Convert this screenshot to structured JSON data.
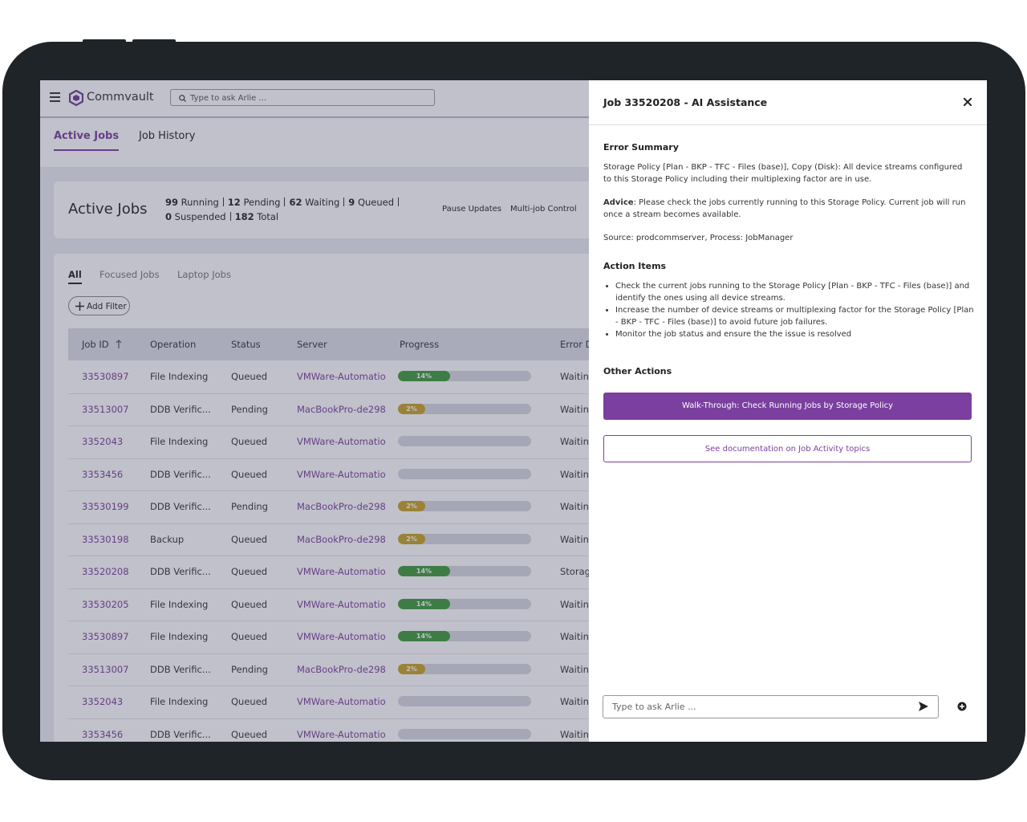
{
  "app": {
    "logo": "Commvault",
    "search_placeholder": "Type to ask Arlie ...",
    "tabs": [
      "Active Jobs",
      "Job History"
    ],
    "summary": {
      "title": "Active Jobs",
      "stats": [
        {
          "count": "99",
          "label": "Running"
        },
        {
          "count": "12",
          "label": "Pending"
        },
        {
          "count": "62",
          "label": "Waiting"
        },
        {
          "count": "9",
          "label": "Queued"
        },
        {
          "count": "0",
          "label": "Suspended"
        },
        {
          "count": "182",
          "label": "Total"
        }
      ],
      "buttons": [
        "Pause Updates",
        "Multi-job Control"
      ]
    },
    "filters": [
      "All",
      "Focused Jobs",
      "Laptop Jobs"
    ],
    "add_filter": "Add Filter",
    "table": {
      "columns": [
        "Job ID",
        "Operation",
        "Status",
        "Server",
        "Progress",
        "Error Description"
      ],
      "rows": [
        {
          "id": "33530897",
          "operation": "File Indexing",
          "status": "Queued",
          "server": "VMWare-Automatio",
          "progress": 14,
          "progress_label": "14%",
          "error": "Waiting"
        },
        {
          "id": "33513007",
          "operation": "DDB Verific...",
          "status": "Pending",
          "server": "MacBookPro-de298",
          "progress": 2,
          "progress_label": "2%",
          "error": "Waiting"
        },
        {
          "id": "3352043",
          "operation": "File Indexing",
          "status": "Queued",
          "server": "VMWare-Automatio",
          "progress": null,
          "progress_label": null,
          "error": "Waiting"
        },
        {
          "id": "3353456",
          "operation": "DDB Verific...",
          "status": "Queued",
          "server": "VMWare-Automatio",
          "progress": null,
          "progress_label": null,
          "error": "Waiting"
        },
        {
          "id": "33530199",
          "operation": "DDB Verific...",
          "status": "Pending",
          "server": "MacBookPro-de298",
          "progress": 2,
          "progress_label": "2%",
          "error": "Waiting"
        },
        {
          "id": "33530198",
          "operation": "Backup",
          "status": "Queued",
          "server": "MacBookPro-de298",
          "progress": 2,
          "progress_label": "2%",
          "error": "Waiting"
        },
        {
          "id": "33520208",
          "operation": "DDB Verific...",
          "status": "Queued",
          "server": "VMWare-Automatio",
          "progress": 14,
          "progress_label": "14%",
          "error": "Storage"
        },
        {
          "id": "33530205",
          "operation": "File Indexing",
          "status": "Queued",
          "server": "VMWare-Automatio",
          "progress": 14,
          "progress_label": "14%",
          "error": "Waiting"
        },
        {
          "id": "33530897",
          "operation": "File Indexing",
          "status": "Queued",
          "server": "VMWare-Automatio",
          "progress": 14,
          "progress_label": "14%",
          "error": "Waiting"
        },
        {
          "id": "33513007",
          "operation": "DDB Verific...",
          "status": "Pending",
          "server": "MacBookPro-de298",
          "progress": 2,
          "progress_label": "2%",
          "error": "Waiting"
        },
        {
          "id": "3352043",
          "operation": "File Indexing",
          "status": "Queued",
          "server": "VMWare-Automatio",
          "progress": null,
          "progress_label": null,
          "error": "Waiting"
        },
        {
          "id": "3353456",
          "operation": "DDB Verific...",
          "status": "Queued",
          "server": "VMWare-Automatio",
          "progress": null,
          "progress_label": null,
          "error": "Waiting"
        }
      ]
    }
  },
  "panel": {
    "title": "Job 33520208 - AI Assistance",
    "error_summary": {
      "heading": "Error Summary",
      "text": "Storage Policy [Plan - BKP - TFC - Files (base)], Copy (Disk): All device streams configured to this Storage Policy including their multiplexing factor are in use.",
      "advice_label": "Advice",
      "advice_text": ": Please check the jobs currently running to this Storage Policy. Current job will run once a stream becomes available.",
      "source": "Source: prodcommserver, Process: JobManager"
    },
    "action_items": {
      "heading": "Action Items",
      "items": [
        "Check the current jobs running to the Storage Policy [Plan - BKP - TFC - Files (base)] and identify the ones using all device streams.",
        "Increase the number of device streams or multiplexing factor for the Storage Policy [Plan - BKP - TFC - Files (base)] to avoid future job failures.",
        "Monitor the job status and ensure the the issue is resolved"
      ]
    },
    "other_actions": {
      "heading": "Other Actions",
      "primary": "Walk-Through: Check Running Jobs by Storage Policy",
      "secondary": "See documentation on Job Activity topics"
    },
    "input_placeholder": "Type to ask Arlie ..."
  }
}
